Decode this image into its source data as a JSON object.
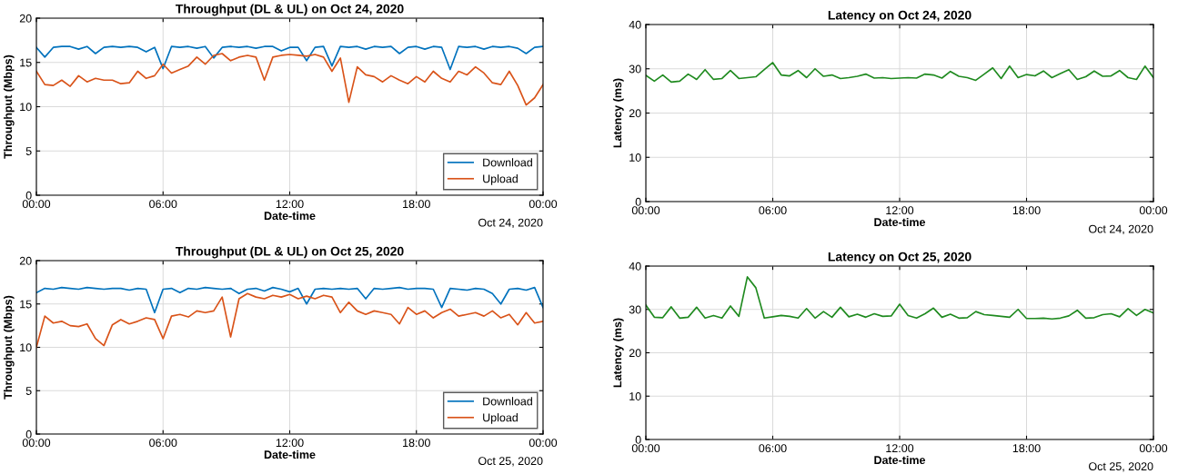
{
  "chart_data": [
    {
      "type": "line",
      "title": "Throughput (DL & UL) on Oct 24, 2020",
      "xlabel": "Date-time",
      "ylabel": "Throughput (Mbps)",
      "annotations": [
        "Oct 24, 2020"
      ],
      "x": [
        0,
        0.4,
        0.8,
        1.2,
        1.6,
        2,
        2.4,
        2.8,
        3.2,
        3.6,
        4,
        4.4,
        4.8,
        5.2,
        5.6,
        6,
        6.4,
        6.8,
        7.2,
        7.6,
        8,
        8.4,
        8.8,
        9.2,
        9.6,
        10,
        10.4,
        10.8,
        11.2,
        11.6,
        12,
        12.4,
        12.8,
        13.2,
        13.6,
        14,
        14.4,
        14.8,
        15.2,
        15.6,
        16,
        16.4,
        16.8,
        17.2,
        17.6,
        18,
        18.4,
        18.8,
        19.2,
        19.6,
        20,
        20.4,
        20.8,
        21.2,
        21.6,
        22,
        22.4,
        22.8,
        23.2,
        23.6,
        24
      ],
      "xlim": [
        0,
        24
      ],
      "xticks": [
        {
          "value": 0,
          "label": "00:00"
        },
        {
          "value": 6,
          "label": "06:00"
        },
        {
          "value": 12,
          "label": "12:00"
        },
        {
          "value": 18,
          "label": "18:00"
        },
        {
          "value": 24,
          "label": "00:00"
        }
      ],
      "ylim": [
        0,
        20
      ],
      "yticks": [
        0,
        5,
        10,
        15,
        20
      ],
      "grid": true,
      "legend": "bottom right",
      "series": [
        {
          "name": "Download",
          "color": "#0072bd",
          "values": [
            16.7,
            15.6,
            16.7,
            16.8,
            16.8,
            16.5,
            16.8,
            16.0,
            16.7,
            16.8,
            16.7,
            16.8,
            16.7,
            16.2,
            16.7,
            14.3,
            16.8,
            16.7,
            16.8,
            16.6,
            16.8,
            15.5,
            16.7,
            16.8,
            16.7,
            16.8,
            16.6,
            16.8,
            16.8,
            16.3,
            16.7,
            16.7,
            15.2,
            16.7,
            16.8,
            14.6,
            16.8,
            16.7,
            16.8,
            16.5,
            16.8,
            16.7,
            16.8,
            16.0,
            16.7,
            16.8,
            16.5,
            16.8,
            16.7,
            14.2,
            16.8,
            16.7,
            16.8,
            16.5,
            16.8,
            16.7,
            16.8,
            16.6,
            16.0,
            16.7,
            16.8
          ]
        },
        {
          "name": "Upload",
          "color": "#d95319",
          "values": [
            14.0,
            12.5,
            12.4,
            13.0,
            12.3,
            13.5,
            12.8,
            13.2,
            13.0,
            13.0,
            12.6,
            12.7,
            14.0,
            13.2,
            13.5,
            14.8,
            13.8,
            14.2,
            14.6,
            15.6,
            14.8,
            15.8,
            16.0,
            15.2,
            15.6,
            15.8,
            15.6,
            13.0,
            15.6,
            15.8,
            15.9,
            15.8,
            15.7,
            15.9,
            15.6,
            14.0,
            15.5,
            10.5,
            14.5,
            13.6,
            13.4,
            12.8,
            13.5,
            13.0,
            12.6,
            13.4,
            12.8,
            14.0,
            13.2,
            12.8,
            14.0,
            13.6,
            14.5,
            13.8,
            12.7,
            12.5,
            14.0,
            12.4,
            10.2,
            11.0,
            12.5
          ]
        }
      ]
    },
    {
      "type": "line",
      "title": "Latency on Oct 24, 2020",
      "xlabel": "Date-time",
      "ylabel": "Latency (ms)",
      "annotations": [
        "Oct 24, 2020"
      ],
      "x": [
        0,
        0.4,
        0.8,
        1.2,
        1.6,
        2,
        2.4,
        2.8,
        3.2,
        3.6,
        4,
        4.4,
        4.8,
        5.2,
        5.6,
        6,
        6.4,
        6.8,
        7.2,
        7.6,
        8,
        8.4,
        8.8,
        9.2,
        9.6,
        10,
        10.4,
        10.8,
        11.2,
        11.6,
        12,
        12.4,
        12.8,
        13.2,
        13.6,
        14,
        14.4,
        14.8,
        15.2,
        15.6,
        16,
        16.4,
        16.8,
        17.2,
        17.6,
        18,
        18.4,
        18.8,
        19.2,
        19.6,
        20,
        20.4,
        20.8,
        21.2,
        21.6,
        22,
        22.4,
        22.8,
        23.2,
        23.6,
        24
      ],
      "xlim": [
        0,
        24
      ],
      "xticks": [
        {
          "value": 0,
          "label": "00:00"
        },
        {
          "value": 6,
          "label": "06:00"
        },
        {
          "value": 12,
          "label": "12:00"
        },
        {
          "value": 18,
          "label": "18:00"
        },
        {
          "value": 24,
          "label": "00:00"
        }
      ],
      "ylim": [
        0,
        40
      ],
      "yticks": [
        0,
        10,
        20,
        30,
        40
      ],
      "grid": true,
      "series": [
        {
          "color": "#1f8a1f",
          "values": [
            28.5,
            27.2,
            28.6,
            27.0,
            27.2,
            28.8,
            27.6,
            29.8,
            27.6,
            27.8,
            29.6,
            27.8,
            28.0,
            28.2,
            29.8,
            31.4,
            28.6,
            28.4,
            29.6,
            28.0,
            30.0,
            28.3,
            28.6,
            27.8,
            28.0,
            28.3,
            28.8,
            27.9,
            28.0,
            27.8,
            27.9,
            28.0,
            27.9,
            28.8,
            28.6,
            27.9,
            29.4,
            28.3,
            28.0,
            27.4,
            28.8,
            30.2,
            27.8,
            30.6,
            28.0,
            28.7,
            28.4,
            29.5,
            28.0,
            28.9,
            29.8,
            27.6,
            28.2,
            29.5,
            28.3,
            28.4,
            29.6,
            28.0,
            27.6,
            30.6,
            28.0
          ]
        }
      ]
    },
    {
      "type": "line",
      "title": "Throughput (DL & UL) on Oct 25, 2020",
      "xlabel": "Date-time",
      "ylabel": "Throughput (Mbps)",
      "annotations": [
        "Oct 25, 2020"
      ],
      "x": [
        0,
        0.4,
        0.8,
        1.2,
        1.6,
        2,
        2.4,
        2.8,
        3.2,
        3.6,
        4,
        4.4,
        4.8,
        5.2,
        5.6,
        6,
        6.4,
        6.8,
        7.2,
        7.6,
        8,
        8.4,
        8.8,
        9.2,
        9.6,
        10,
        10.4,
        10.8,
        11.2,
        11.6,
        12,
        12.4,
        12.8,
        13.2,
        13.6,
        14,
        14.4,
        14.8,
        15.2,
        15.6,
        16,
        16.4,
        16.8,
        17.2,
        17.6,
        18,
        18.4,
        18.8,
        19.2,
        19.6,
        20,
        20.4,
        20.8,
        21.2,
        21.6,
        22,
        22.4,
        22.8,
        23.2,
        23.6,
        24
      ],
      "xlim": [
        0,
        24
      ],
      "xticks": [
        {
          "value": 0,
          "label": "00:00"
        },
        {
          "value": 6,
          "label": "06:00"
        },
        {
          "value": 12,
          "label": "12:00"
        },
        {
          "value": 18,
          "label": "18:00"
        },
        {
          "value": 24,
          "label": "00:00"
        }
      ],
      "ylim": [
        0,
        20
      ],
      "yticks": [
        0,
        5,
        10,
        15,
        20
      ],
      "grid": true,
      "legend": "bottom right",
      "series": [
        {
          "name": "Download",
          "color": "#0072bd",
          "values": [
            16.3,
            16.8,
            16.7,
            16.9,
            16.8,
            16.7,
            16.9,
            16.8,
            16.7,
            16.8,
            16.8,
            16.6,
            16.8,
            16.7,
            14.0,
            16.7,
            16.8,
            16.3,
            16.8,
            16.7,
            16.9,
            16.8,
            16.7,
            16.8,
            16.2,
            16.7,
            16.8,
            16.5,
            16.9,
            16.7,
            16.4,
            16.8,
            15.0,
            16.7,
            16.8,
            16.7,
            16.8,
            16.7,
            16.8,
            15.6,
            16.8,
            16.7,
            16.8,
            16.9,
            16.7,
            16.8,
            16.8,
            16.7,
            14.6,
            16.8,
            16.7,
            16.6,
            16.8,
            16.7,
            16.2,
            15.0,
            16.7,
            16.8,
            16.6,
            16.9,
            14.6
          ]
        },
        {
          "name": "Upload",
          "color": "#d95319",
          "values": [
            10.0,
            13.6,
            12.8,
            13.0,
            12.5,
            12.4,
            12.7,
            11.0,
            10.2,
            12.6,
            13.2,
            12.7,
            13.0,
            13.4,
            13.2,
            11.0,
            13.6,
            13.8,
            13.5,
            14.2,
            14.0,
            14.2,
            15.8,
            11.2,
            15.6,
            16.2,
            15.8,
            15.6,
            16.0,
            15.8,
            16.1,
            15.6,
            15.9,
            15.6,
            16.0,
            15.8,
            14.0,
            15.2,
            14.2,
            13.8,
            14.2,
            14.0,
            13.8,
            12.7,
            14.6,
            13.8,
            14.2,
            13.4,
            14.0,
            14.4,
            13.6,
            13.8,
            14.0,
            13.6,
            14.2,
            13.4,
            13.8,
            12.6,
            14.0,
            12.8,
            13.0
          ]
        }
      ]
    },
    {
      "type": "line",
      "title": "Latency on Oct 25, 2020",
      "xlabel": "Date-time",
      "ylabel": "Latency (ms)",
      "annotations": [
        "Oct 25, 2020"
      ],
      "x": [
        0,
        0.4,
        0.8,
        1.2,
        1.6,
        2,
        2.4,
        2.8,
        3.2,
        3.6,
        4,
        4.4,
        4.8,
        5.2,
        5.6,
        6,
        6.4,
        6.8,
        7.2,
        7.6,
        8,
        8.4,
        8.8,
        9.2,
        9.6,
        10,
        10.4,
        10.8,
        11.2,
        11.6,
        12,
        12.4,
        12.8,
        13.2,
        13.6,
        14,
        14.4,
        14.8,
        15.2,
        15.6,
        16,
        16.4,
        16.8,
        17.2,
        17.6,
        18,
        18.4,
        18.8,
        19.2,
        19.6,
        20,
        20.4,
        20.8,
        21.2,
        21.6,
        22,
        22.4,
        22.8,
        23.2,
        23.6,
        24
      ],
      "xlim": [
        0,
        24
      ],
      "xticks": [
        {
          "value": 0,
          "label": "00:00"
        },
        {
          "value": 6,
          "label": "06:00"
        },
        {
          "value": 12,
          "label": "12:00"
        },
        {
          "value": 18,
          "label": "18:00"
        },
        {
          "value": 24,
          "label": "00:00"
        }
      ],
      "ylim": [
        0,
        40
      ],
      "yticks": [
        0,
        10,
        20,
        30,
        40
      ],
      "grid": true,
      "series": [
        {
          "color": "#1f8a1f",
          "values": [
            31.0,
            28.2,
            28.1,
            30.6,
            28.0,
            28.2,
            30.5,
            28.0,
            28.6,
            28.0,
            30.8,
            28.4,
            37.5,
            35.0,
            28.0,
            28.3,
            28.6,
            28.4,
            28.0,
            30.2,
            28.0,
            29.5,
            28.2,
            30.5,
            28.3,
            28.9,
            28.2,
            29.0,
            28.4,
            28.5,
            31.2,
            28.6,
            28.0,
            29.0,
            30.3,
            28.2,
            28.9,
            28.0,
            28.1,
            29.5,
            28.8,
            28.6,
            28.4,
            28.2,
            30.0,
            27.9,
            27.9,
            28.0,
            27.8,
            28.0,
            28.5,
            29.8,
            28.0,
            28.1,
            28.8,
            29.0,
            28.3,
            30.2,
            28.6,
            30.0,
            29.2
          ]
        }
      ]
    }
  ]
}
